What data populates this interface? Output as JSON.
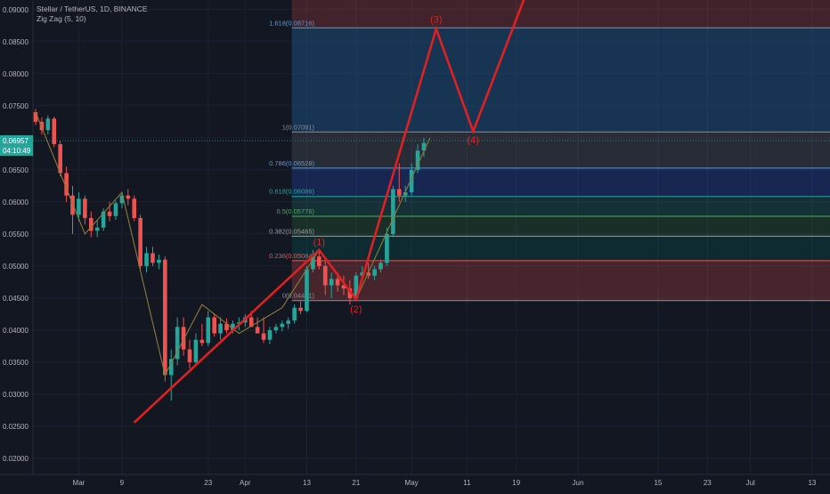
{
  "header": {
    "symbol_line": "Stellar / TetherUS, 1D, BINANCE",
    "indicator_line": "Zig Zag (5, 10)"
  },
  "price_badge": {
    "price": "0.06957",
    "countdown": "04:10:49"
  },
  "colors": {
    "background": "#131722",
    "grid": "#1e2230",
    "up": "#26a69a",
    "down": "#ef5350",
    "wave": "#e02020",
    "zigzag": "#8c7a3a",
    "badge": "#26a69a"
  },
  "y_axis": {
    "ticks": [
      "0.09000",
      "0.08500",
      "0.08000",
      "0.07500",
      "0.07000",
      "0.06500",
      "0.06000",
      "0.05500",
      "0.05000",
      "0.04500",
      "0.04000",
      "0.03500",
      "0.03000",
      "0.02500",
      "0.02000"
    ]
  },
  "x_axis": {
    "ticks": [
      "Mar",
      "9",
      "23",
      "Apr",
      "13",
      "21",
      "May",
      "11",
      "19",
      "Jun",
      "15",
      "23",
      "Jul",
      "13"
    ]
  },
  "fib_levels": [
    {
      "label": "1.618(0.08716)",
      "value": 0.08716,
      "color": "#5b9bd5"
    },
    {
      "label": "1(0.07091)",
      "value": 0.07091,
      "color": "#8a8d96"
    },
    {
      "label": "0.786(0.06528)",
      "value": 0.06528,
      "color": "#5b9bd5"
    },
    {
      "label": "0.618(0.06086)",
      "value": 0.06086,
      "color": "#26a69a"
    },
    {
      "label": "0.5(0.05776)",
      "value": 0.05776,
      "color": "#4caf50"
    },
    {
      "label": "0.382(0.05465)",
      "value": 0.05465,
      "color": "#9e9e9e"
    },
    {
      "label": "0.236(0.05084)",
      "value": 0.05084,
      "color": "#ef5350"
    },
    {
      "label": "0(0.04461)",
      "value": 0.04461,
      "color": "#8a8d96"
    }
  ],
  "wave_labels": [
    "(1)",
    "(2)",
    "(3)",
    "(4)"
  ],
  "chart_data": {
    "type": "candlestick",
    "x_unit": "days",
    "ylim": [
      0.0175,
      0.0915
    ],
    "candles": [
      [
        0.074,
        0.0745,
        0.072,
        0.0725
      ],
      [
        0.0725,
        0.0732,
        0.0705,
        0.0712
      ],
      [
        0.0712,
        0.0735,
        0.0705,
        0.073
      ],
      [
        0.073,
        0.0733,
        0.0685,
        0.069
      ],
      [
        0.069,
        0.0695,
        0.064,
        0.0645
      ],
      [
        0.0645,
        0.0655,
        0.06,
        0.061
      ],
      [
        0.061,
        0.0625,
        0.055,
        0.058
      ],
      [
        0.058,
        0.0615,
        0.057,
        0.0605
      ],
      [
        0.0605,
        0.061,
        0.0565,
        0.0575
      ],
      [
        0.0575,
        0.0585,
        0.0545,
        0.0555
      ],
      [
        0.0555,
        0.0572,
        0.0545,
        0.056
      ],
      [
        0.056,
        0.059,
        0.0555,
        0.0585
      ],
      [
        0.0585,
        0.06,
        0.057,
        0.0578
      ],
      [
        0.0578,
        0.0602,
        0.0572,
        0.0598
      ],
      [
        0.0598,
        0.0615,
        0.059,
        0.061
      ],
      [
        0.061,
        0.062,
        0.0595,
        0.0605
      ],
      [
        0.0605,
        0.061,
        0.057,
        0.0575
      ],
      [
        0.0575,
        0.058,
        0.0495,
        0.05
      ],
      [
        0.05,
        0.053,
        0.049,
        0.052
      ],
      [
        0.052,
        0.053,
        0.05,
        0.0505
      ],
      [
        0.0505,
        0.0518,
        0.0495,
        0.051
      ],
      [
        0.051,
        0.0515,
        0.032,
        0.033
      ],
      [
        0.033,
        0.037,
        0.029,
        0.0355
      ],
      [
        0.0355,
        0.042,
        0.0345,
        0.0405
      ],
      [
        0.0405,
        0.042,
        0.036,
        0.037
      ],
      [
        0.037,
        0.0385,
        0.034,
        0.035
      ],
      [
        0.035,
        0.0395,
        0.0345,
        0.0385
      ],
      [
        0.0385,
        0.041,
        0.0375,
        0.038
      ],
      [
        0.038,
        0.043,
        0.0375,
        0.042
      ],
      [
        0.042,
        0.0425,
        0.039,
        0.0395
      ],
      [
        0.0395,
        0.042,
        0.0385,
        0.041
      ],
      [
        0.041,
        0.0418,
        0.0395,
        0.04
      ],
      [
        0.04,
        0.0415,
        0.0395,
        0.041
      ],
      [
        0.041,
        0.042,
        0.04,
        0.0412
      ],
      [
        0.0412,
        0.0425,
        0.0405,
        0.042
      ],
      [
        0.042,
        0.043,
        0.041,
        0.0405
      ],
      [
        0.0405,
        0.042,
        0.0395,
        0.0395
      ],
      [
        0.0395,
        0.042,
        0.038,
        0.0385
      ],
      [
        0.0385,
        0.0405,
        0.0378,
        0.04
      ],
      [
        0.04,
        0.041,
        0.0395,
        0.0405
      ],
      [
        0.0405,
        0.0415,
        0.0398,
        0.041
      ],
      [
        0.041,
        0.042,
        0.0402,
        0.0415
      ],
      [
        0.0415,
        0.044,
        0.041,
        0.0435
      ],
      [
        0.0435,
        0.0445,
        0.0425,
        0.043
      ],
      [
        0.043,
        0.05,
        0.0428,
        0.0495
      ],
      [
        0.0495,
        0.0525,
        0.049,
        0.0515
      ],
      [
        0.0515,
        0.0522,
        0.0495,
        0.05
      ],
      [
        0.05,
        0.0508,
        0.0455,
        0.047
      ],
      [
        0.047,
        0.049,
        0.045,
        0.048
      ],
      [
        0.048,
        0.049,
        0.046,
        0.047
      ],
      [
        0.047,
        0.0485,
        0.0455,
        0.0465
      ],
      [
        0.0465,
        0.0478,
        0.044,
        0.045
      ],
      [
        0.045,
        0.049,
        0.0445,
        0.0485
      ],
      [
        0.0485,
        0.05,
        0.0475,
        0.049
      ],
      [
        0.049,
        0.0505,
        0.048,
        0.0485
      ],
      [
        0.0485,
        0.05,
        0.0478,
        0.0495
      ],
      [
        0.0495,
        0.051,
        0.049,
        0.0505
      ],
      [
        0.0505,
        0.056,
        0.05,
        0.055
      ],
      [
        0.055,
        0.0625,
        0.0545,
        0.062
      ],
      [
        0.062,
        0.066,
        0.06,
        0.061
      ],
      [
        0.061,
        0.0625,
        0.06,
        0.0615
      ],
      [
        0.0615,
        0.066,
        0.061,
        0.065
      ],
      [
        0.065,
        0.069,
        0.0645,
        0.068
      ],
      [
        0.068,
        0.07,
        0.067,
        0.0692
      ]
    ],
    "fib_anchor_day": 41,
    "wave_path": [
      [
        16,
        0.0256
      ],
      [
        46,
        0.0525
      ],
      [
        52,
        0.0448
      ],
      [
        65,
        0.087
      ],
      [
        71,
        0.071
      ],
      [
        80,
        0.0935
      ]
    ],
    "wave_label_points": [
      [
        46,
        0.0538
      ],
      [
        52,
        0.0433
      ],
      [
        65,
        0.0885
      ],
      [
        71,
        0.0697
      ]
    ],
    "zigzag_path": [
      [
        0,
        0.074
      ],
      [
        8,
        0.055
      ],
      [
        14,
        0.0615
      ],
      [
        21,
        0.033
      ],
      [
        27,
        0.044
      ],
      [
        33,
        0.0395
      ],
      [
        40,
        0.0435
      ],
      [
        46,
        0.0525
      ],
      [
        52,
        0.0448
      ],
      [
        64,
        0.07
      ]
    ],
    "dotted_path": [
      [
        16,
        0.0256
      ],
      [
        46,
        0.0525
      ]
    ]
  }
}
